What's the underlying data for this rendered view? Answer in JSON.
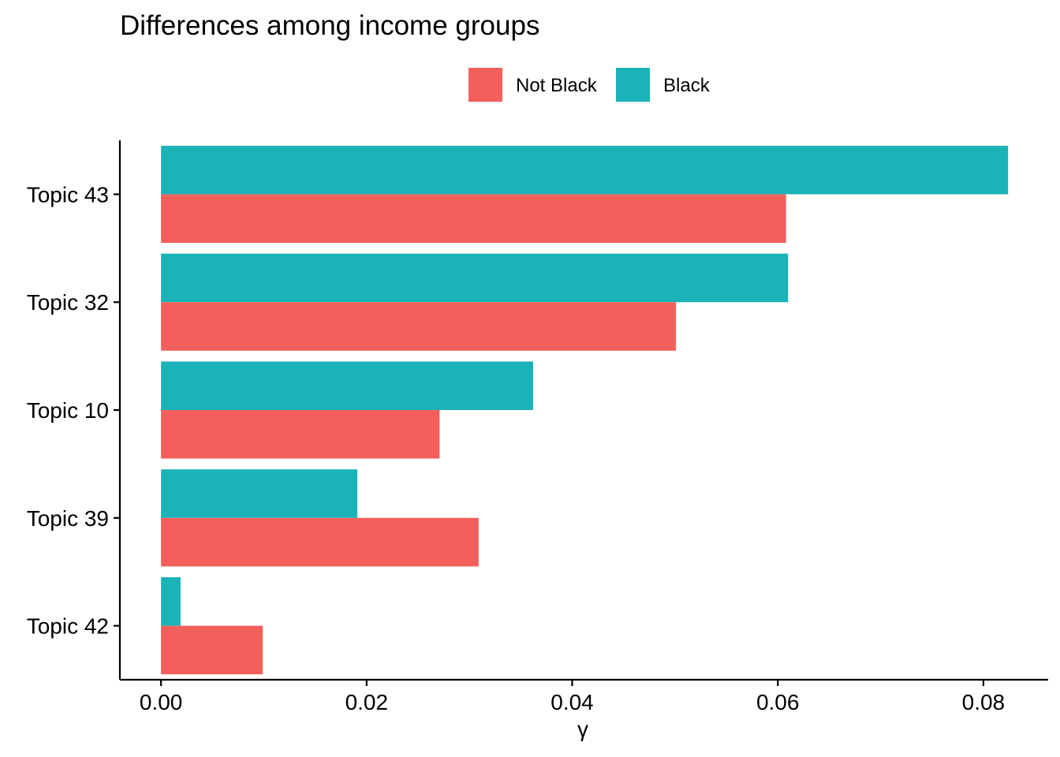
{
  "chart_data": {
    "type": "bar",
    "orientation": "horizontal",
    "title": "Differences among income groups",
    "xlabel": "γ",
    "ylabel": "",
    "categories": [
      "Topic 43",
      "Topic 32",
      "Topic 10",
      "Topic 39",
      "Topic 42"
    ],
    "series": [
      {
        "name": "Not Black",
        "color": "#F3605C",
        "values": [
          0.0608,
          0.0501,
          0.0271,
          0.0309,
          0.0099
        ]
      },
      {
        "name": "Black",
        "color": "#1AB3B7",
        "values": [
          0.0824,
          0.061,
          0.0362,
          0.0191,
          0.0019
        ]
      }
    ],
    "xlim": [
      -0.004,
      0.0863
    ],
    "xticks": [
      0.0,
      0.02,
      0.04,
      0.06,
      0.08
    ],
    "xtick_labels": [
      "0.00",
      "0.02",
      "0.04",
      "0.06",
      "0.08"
    ],
    "grid": false,
    "legend_position": "top"
  }
}
